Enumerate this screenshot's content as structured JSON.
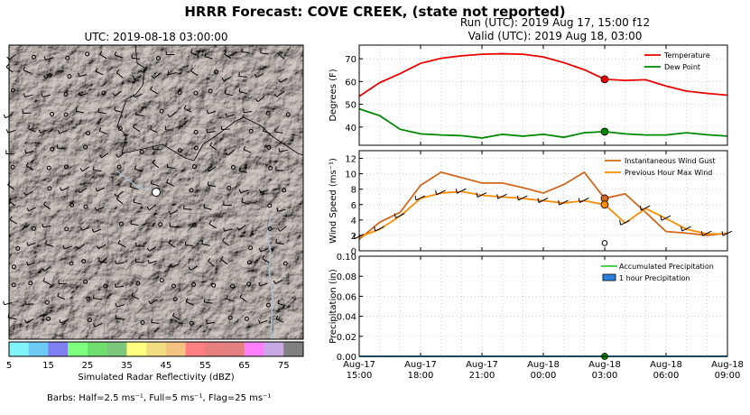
{
  "header": {
    "title": "HRRR Forecast: COVE CREEK, (state not reported)",
    "run": "Run (UTC): 2019 Aug 17, 15:00 f12",
    "valid": "Valid (UTC): 2019 Aug 18, 03:00"
  },
  "map": {
    "title": "UTC: 2019-08-18 03:00:00",
    "colorbar_label": "Simulated Radar Reflectivity (dBZ)",
    "colorbar_ticks": [
      "5",
      "15",
      "25",
      "35",
      "45",
      "55",
      "65",
      "75"
    ],
    "colorbar_colors": [
      "#7ff3f8",
      "#6ecbf6",
      "#7f7ff2",
      "#7fff7f",
      "#6fde6f",
      "#7bc77b",
      "#ffff7f",
      "#f2de81",
      "#f5c381",
      "#ff8080",
      "#e77f7f",
      "#e38080",
      "#ff80ff",
      "#c9a8e6",
      "#808080"
    ],
    "barbs_note": "Barbs: Half=2.5 ms⁻¹, Full=5 ms⁻¹, Flag=25 ms⁻¹"
  },
  "chart_data": [
    {
      "type": "line",
      "ylabel": "Degrees (F)",
      "ylim": [
        32,
        76
      ],
      "yticks": [
        "40",
        "50",
        "60",
        "70"
      ],
      "x_hours": [
        0,
        1,
        2,
        3,
        4,
        5,
        6,
        7,
        8,
        9,
        10,
        11,
        12,
        13,
        14,
        15,
        16,
        17,
        18
      ],
      "series": [
        {
          "name": "Temperature",
          "color": "#ee0000",
          "values": [
            53.5,
            59.5,
            63.5,
            68,
            70.2,
            71.3,
            72,
            72.2,
            72,
            70.8,
            68.3,
            65.2,
            61,
            60.5,
            60.8,
            58,
            55.8,
            54.8,
            54
          ]
        },
        {
          "name": "Dew Point",
          "color": "#008800",
          "values": [
            48,
            45,
            39,
            37,
            36.5,
            36.2,
            35.2,
            36.8,
            36,
            36.8,
            35.5,
            37.5,
            38,
            37,
            36.5,
            36.5,
            37.5,
            36.6,
            36
          ]
        }
      ],
      "highlight_index": 12,
      "grid": true,
      "legend": "top-right"
    },
    {
      "type": "line",
      "ylabel": "Wind Speed (ms⁻¹)",
      "ylim": [
        0,
        13
      ],
      "yticks": [
        "0",
        "2",
        "4",
        "6",
        "8",
        "10",
        "12"
      ],
      "x_hours": [
        0,
        1,
        2,
        3,
        4,
        5,
        6,
        7,
        8,
        9,
        10,
        11,
        12,
        13,
        14,
        15,
        16,
        17,
        18
      ],
      "series": [
        {
          "name": "Instantaneous Wind Gust",
          "color": "#d2691e",
          "values": [
            1.5,
            3.7,
            5,
            8.5,
            10.2,
            9.5,
            8.8,
            8.8,
            8.2,
            7.5,
            8.6,
            10.2,
            6.8,
            7.4,
            5,
            2.5,
            2.3,
            2,
            2.3
          ]
        },
        {
          "name": "Previous Hour Max Wind",
          "color": "#ff8c00",
          "values": [
            1.8,
            2.8,
            4.5,
            6.8,
            7.5,
            7.7,
            7.2,
            7,
            6.8,
            6.5,
            6.2,
            6.5,
            6,
            3.6,
            5.5,
            4.2,
            2.8,
            2.2,
            2.2
          ]
        }
      ],
      "wind_now": 1.0,
      "highlight_index": 12,
      "grid": true,
      "legend": "top-right"
    },
    {
      "type": "bar",
      "ylabel": "Precipitation (in)",
      "ylim": [
        0,
        0.1
      ],
      "yticks": [
        "0.00",
        "0.02",
        "0.04",
        "0.06",
        "0.08",
        "0.10"
      ],
      "series": [
        {
          "name": "Accumulated Precipitation",
          "color": "#33cc33",
          "values": [
            0,
            0,
            0,
            0,
            0,
            0,
            0,
            0,
            0,
            0,
            0,
            0,
            0,
            0,
            0,
            0,
            0,
            0,
            0
          ]
        },
        {
          "name": "1 hour Precipitation",
          "color": "#2b7fde",
          "values": [
            0,
            0,
            0,
            0,
            0,
            0,
            0,
            0,
            0,
            0,
            0,
            0,
            0,
            0,
            0,
            0,
            0,
            0,
            0
          ]
        }
      ],
      "highlight_index": 12,
      "grid": true,
      "legend": "top-right"
    }
  ],
  "x_axis": {
    "ticks": [
      {
        "h": 0,
        "line1": "Aug-17",
        "line2": "15:00"
      },
      {
        "h": 3,
        "line1": "Aug-17",
        "line2": "18:00"
      },
      {
        "h": 6,
        "line1": "Aug-17",
        "line2": "21:00"
      },
      {
        "h": 9,
        "line1": "Aug-18",
        "line2": "00:00"
      },
      {
        "h": 12,
        "line1": "Aug-18",
        "line2": "03:00"
      },
      {
        "h": 15,
        "line1": "Aug-18",
        "line2": "06:00"
      },
      {
        "h": 18,
        "line1": "Aug-18",
        "line2": "09:00"
      }
    ]
  }
}
